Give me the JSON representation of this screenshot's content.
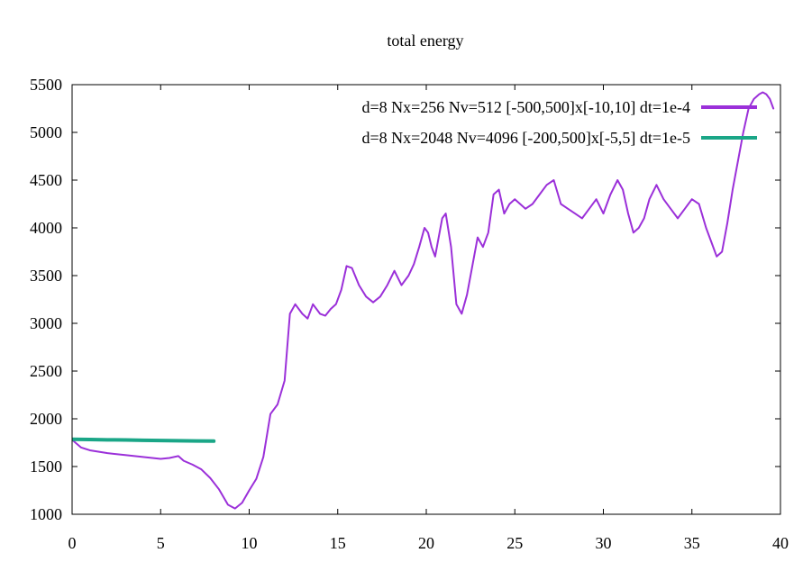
{
  "chart_data": {
    "type": "line",
    "title": "total energy",
    "xlabel": "",
    "ylabel": "",
    "xlim": [
      0,
      40
    ],
    "ylim": [
      1000,
      5500
    ],
    "x_ticks": [
      0,
      5,
      10,
      15,
      20,
      25,
      30,
      35,
      40
    ],
    "y_ticks": [
      1000,
      1500,
      2000,
      2500,
      3000,
      3500,
      4000,
      4500,
      5000,
      5500
    ],
    "legend_position": "top-right",
    "series": [
      {
        "name": "d=8 Nx=256 Nv=512 [-500,500]x[-10,10] dt=1e-4",
        "color": "#9b30d9",
        "x": [
          0,
          0.5,
          1,
          2,
          3,
          4,
          5,
          5.5,
          6,
          6.3,
          6.8,
          7.3,
          7.8,
          8.3,
          8.8,
          9.2,
          9.6,
          10,
          10.4,
          10.8,
          11.2,
          11.6,
          12,
          12.3,
          12.6,
          13,
          13.3,
          13.6,
          14,
          14.3,
          14.6,
          14.9,
          15.2,
          15.5,
          15.8,
          16.2,
          16.6,
          17,
          17.4,
          17.8,
          18.2,
          18.6,
          19,
          19.3,
          19.6,
          19.9,
          20.1,
          20.3,
          20.5,
          20.7,
          20.9,
          21.1,
          21.4,
          21.7,
          22,
          22.3,
          22.6,
          22.9,
          23.2,
          23.5,
          23.8,
          24.1,
          24.4,
          24.7,
          25,
          25.3,
          25.6,
          26,
          26.4,
          26.8,
          27.2,
          27.6,
          28,
          28.4,
          28.8,
          29.2,
          29.6,
          30,
          30.4,
          30.8,
          31.1,
          31.4,
          31.7,
          32,
          32.3,
          32.6,
          33,
          33.4,
          33.8,
          34.2,
          34.6,
          35,
          35.4,
          35.8,
          36.1,
          36.4,
          36.7,
          37,
          37.3,
          37.6,
          37.9,
          38.2,
          38.5,
          38.8,
          39,
          39.2,
          39.4,
          39.6
        ],
        "values": [
          1780,
          1700,
          1670,
          1640,
          1620,
          1600,
          1580,
          1590,
          1610,
          1560,
          1520,
          1470,
          1380,
          1260,
          1100,
          1060,
          1120,
          1250,
          1370,
          1600,
          2050,
          2150,
          2400,
          3100,
          3200,
          3100,
          3050,
          3200,
          3100,
          3080,
          3150,
          3200,
          3350,
          3600,
          3580,
          3400,
          3280,
          3220,
          3280,
          3400,
          3550,
          3400,
          3500,
          3620,
          3800,
          4000,
          3950,
          3800,
          3700,
          3900,
          4100,
          4150,
          3800,
          3200,
          3100,
          3300,
          3600,
          3900,
          3800,
          3950,
          4350,
          4400,
          4150,
          4250,
          4300,
          4250,
          4200,
          4250,
          4350,
          4450,
          4500,
          4250,
          4200,
          4150,
          4100,
          4200,
          4300,
          4150,
          4350,
          4500,
          4400,
          4150,
          3950,
          4000,
          4100,
          4300,
          4450,
          4300,
          4200,
          4100,
          4200,
          4300,
          4250,
          4000,
          3850,
          3700,
          3750,
          4050,
          4400,
          4700,
          5000,
          5250,
          5350,
          5400,
          5420,
          5400,
          5350,
          5250
        ]
      },
      {
        "name": "d=8 Nx=2048 Nv=4096 [-200,500]x[-5,5] dt=1e-5",
        "color": "#1aa687",
        "x": [
          0,
          1,
          2,
          3,
          4,
          5,
          6,
          7,
          8
        ],
        "values": [
          1785,
          1783,
          1780,
          1778,
          1775,
          1772,
          1770,
          1768,
          1766
        ]
      }
    ]
  }
}
